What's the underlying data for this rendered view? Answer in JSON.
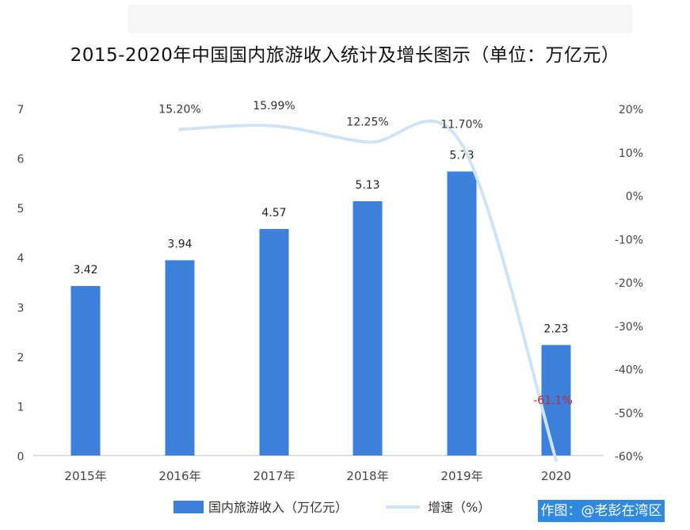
{
  "title": "2015-2020年中国国内旅游收入统计及增长图示（单位：万亿元）",
  "watermark": "作图：@老彭在湾区",
  "colors": {
    "bar": "#3d80dc",
    "line": "#cfe3f7",
    "axis": "#bfbfbf",
    "negative_label": "#cc2222"
  },
  "chart_data": {
    "type": "bar",
    "title": "2015-2020年中国国内旅游收入统计及增长图示（单位：万亿元）",
    "categories": [
      "2015年",
      "2016年",
      "2017年",
      "2018年",
      "2019年",
      "2020"
    ],
    "series": [
      {
        "name": "国内旅游收入（万亿元）",
        "type": "bar",
        "axis": "left",
        "values": [
          3.42,
          3.94,
          4.57,
          5.13,
          5.73,
          2.23
        ],
        "labels": [
          "3.42",
          "3.94",
          "4.57",
          "5.13",
          "5.73",
          "2.23"
        ]
      },
      {
        "name": "增速（%）",
        "type": "line",
        "axis": "right",
        "values": [
          null,
          15.2,
          15.99,
          12.25,
          11.7,
          -61.1
        ],
        "labels": [
          "",
          "15.20%",
          "15.99%",
          "12.25%",
          "11.70%",
          "-61.1%"
        ]
      }
    ],
    "y_left": {
      "min": 0,
      "max": 7,
      "ticks": [
        "0",
        "1",
        "2",
        "3",
        "4",
        "5",
        "6",
        "7"
      ]
    },
    "y_right": {
      "min": -60,
      "max": 20,
      "ticks": [
        "20%",
        "10%",
        "0%",
        "-10%",
        "-20%",
        "-30%",
        "-40%",
        "-50%",
        "-60%"
      ]
    },
    "legend": [
      {
        "label": "国内旅游收入（万亿元）",
        "kind": "bar"
      },
      {
        "label": "增速（%）",
        "kind": "line"
      }
    ],
    "legend_position": "bottom-center",
    "grid": false
  }
}
